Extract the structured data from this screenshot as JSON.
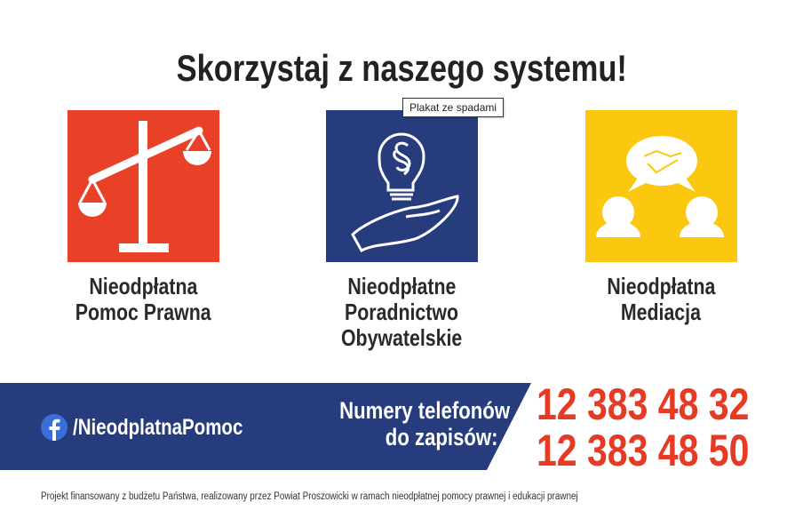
{
  "title": "Skorzystaj z naszego systemu!",
  "tooltip": "Plakat ze spadami",
  "tiles": [
    {
      "icon": "scales-icon",
      "color": "#e84127",
      "label_lines": [
        "Nieodpłatna",
        "Pomoc Prawna"
      ]
    },
    {
      "icon": "lightbulb-hand-icon",
      "color": "#263c7d",
      "label_lines": [
        "Nieodpłatne",
        "Poradnictwo",
        "Obywatelskie"
      ]
    },
    {
      "icon": "mediation-icon",
      "color": "#fbc70f",
      "label_lines": [
        "Nieodpłatna",
        "Mediacja"
      ]
    }
  ],
  "banner": {
    "color": "#263c7d",
    "facebook": "/NieodplatnaPomoc",
    "phone_label_lines": [
      "Numery telefonów",
      "do zapisów:"
    ],
    "phones": [
      "12 383 48 32",
      "12 383 48 50"
    ],
    "phone_color": "#e63a24"
  },
  "footer": "Projekt finansowany z budżetu Państwa, realizowany przez Powiat Proszowicki w ramach nieodpłatnej pomocy prawnej i edukacji prawnej"
}
